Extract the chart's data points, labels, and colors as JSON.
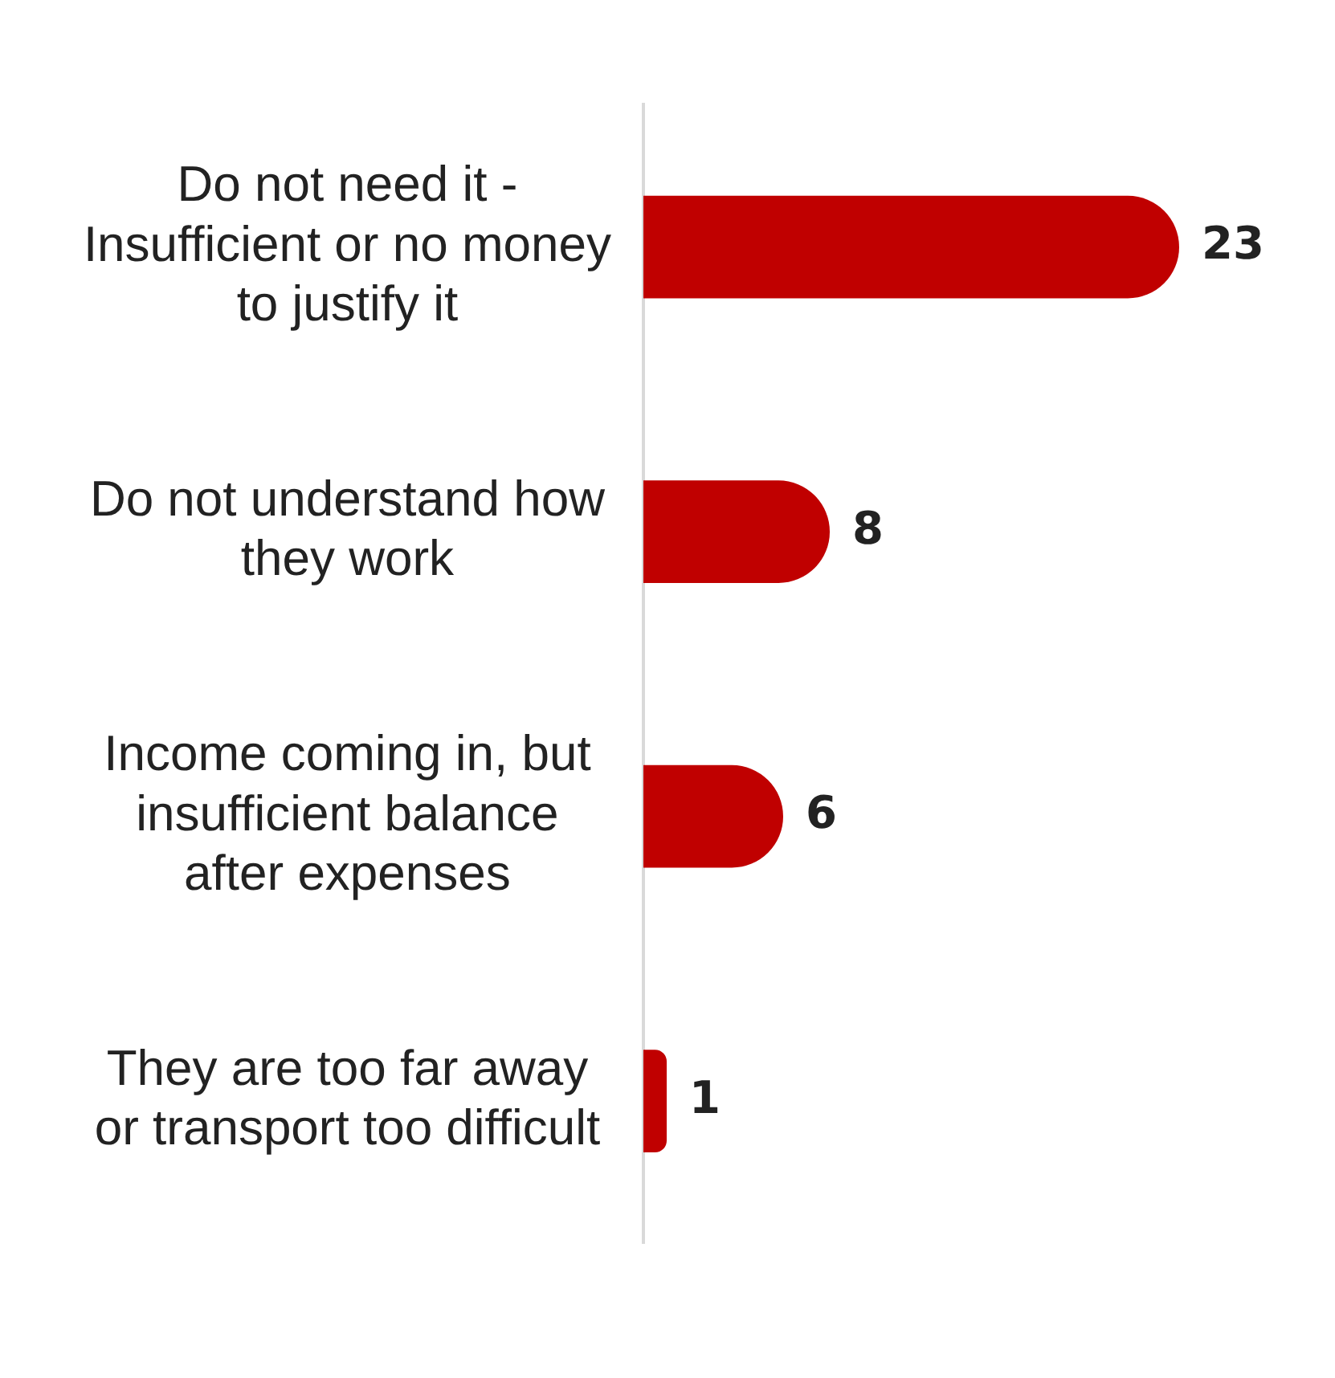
{
  "chart_data": {
    "type": "bar",
    "orientation": "horizontal",
    "categories": [
      "Do not need it - Insufficient or no money to justify it",
      "Do not understand how they work",
      "Income coming in, but insufficient balance after expenses",
      "They are too far away or transport too difficult"
    ],
    "values": [
      23,
      8,
      6,
      1
    ],
    "color": "#c00000",
    "data_labels": true,
    "grid": false,
    "legend": false
  }
}
